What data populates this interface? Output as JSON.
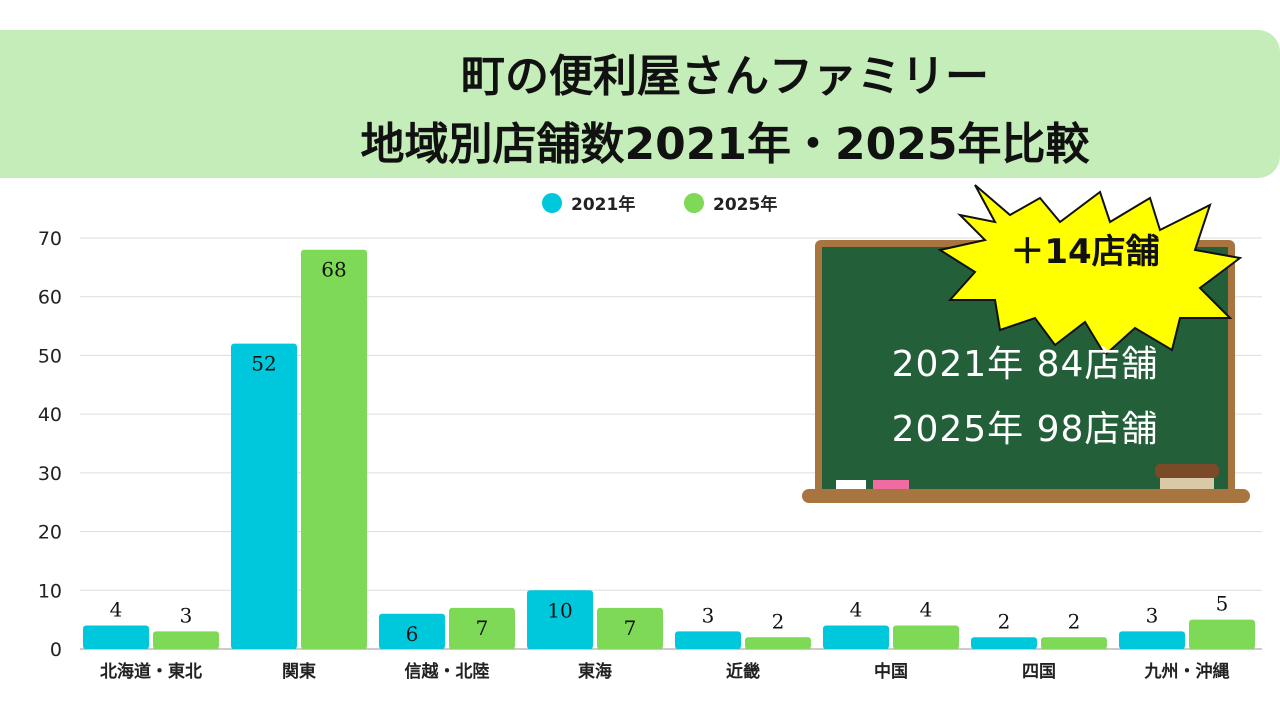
{
  "title": {
    "line1": "町の便利屋さんファミリー",
    "line2": "地域別店舗数2021年・2025年比較"
  },
  "colors": {
    "series_2021": "#00c8dc",
    "series_2025": "#7ed957",
    "banner": "#c5edb9",
    "board": "#23603a",
    "board_frame": "#a8743f",
    "badge": "#ffff00"
  },
  "callout": {
    "badge": "＋14店舗",
    "line1": "2021年  84店舗",
    "line2": "2025年  98店舗"
  },
  "chart_data": {
    "type": "bar",
    "categories": [
      "北海道・東北",
      "関東",
      "信越・北陸",
      "東海",
      "近畿",
      "中国",
      "四国",
      "九州・沖縄"
    ],
    "series": [
      {
        "name": "2021年",
        "values": [
          4,
          52,
          6,
          10,
          3,
          4,
          2,
          3
        ]
      },
      {
        "name": "2025年",
        "values": [
          3,
          68,
          7,
          7,
          2,
          4,
          2,
          5
        ]
      }
    ],
    "yticks": [
      0,
      10,
      20,
      30,
      40,
      50,
      60,
      70
    ],
    "ylim": [
      0,
      70
    ],
    "grid": true,
    "legend": "top-center"
  }
}
